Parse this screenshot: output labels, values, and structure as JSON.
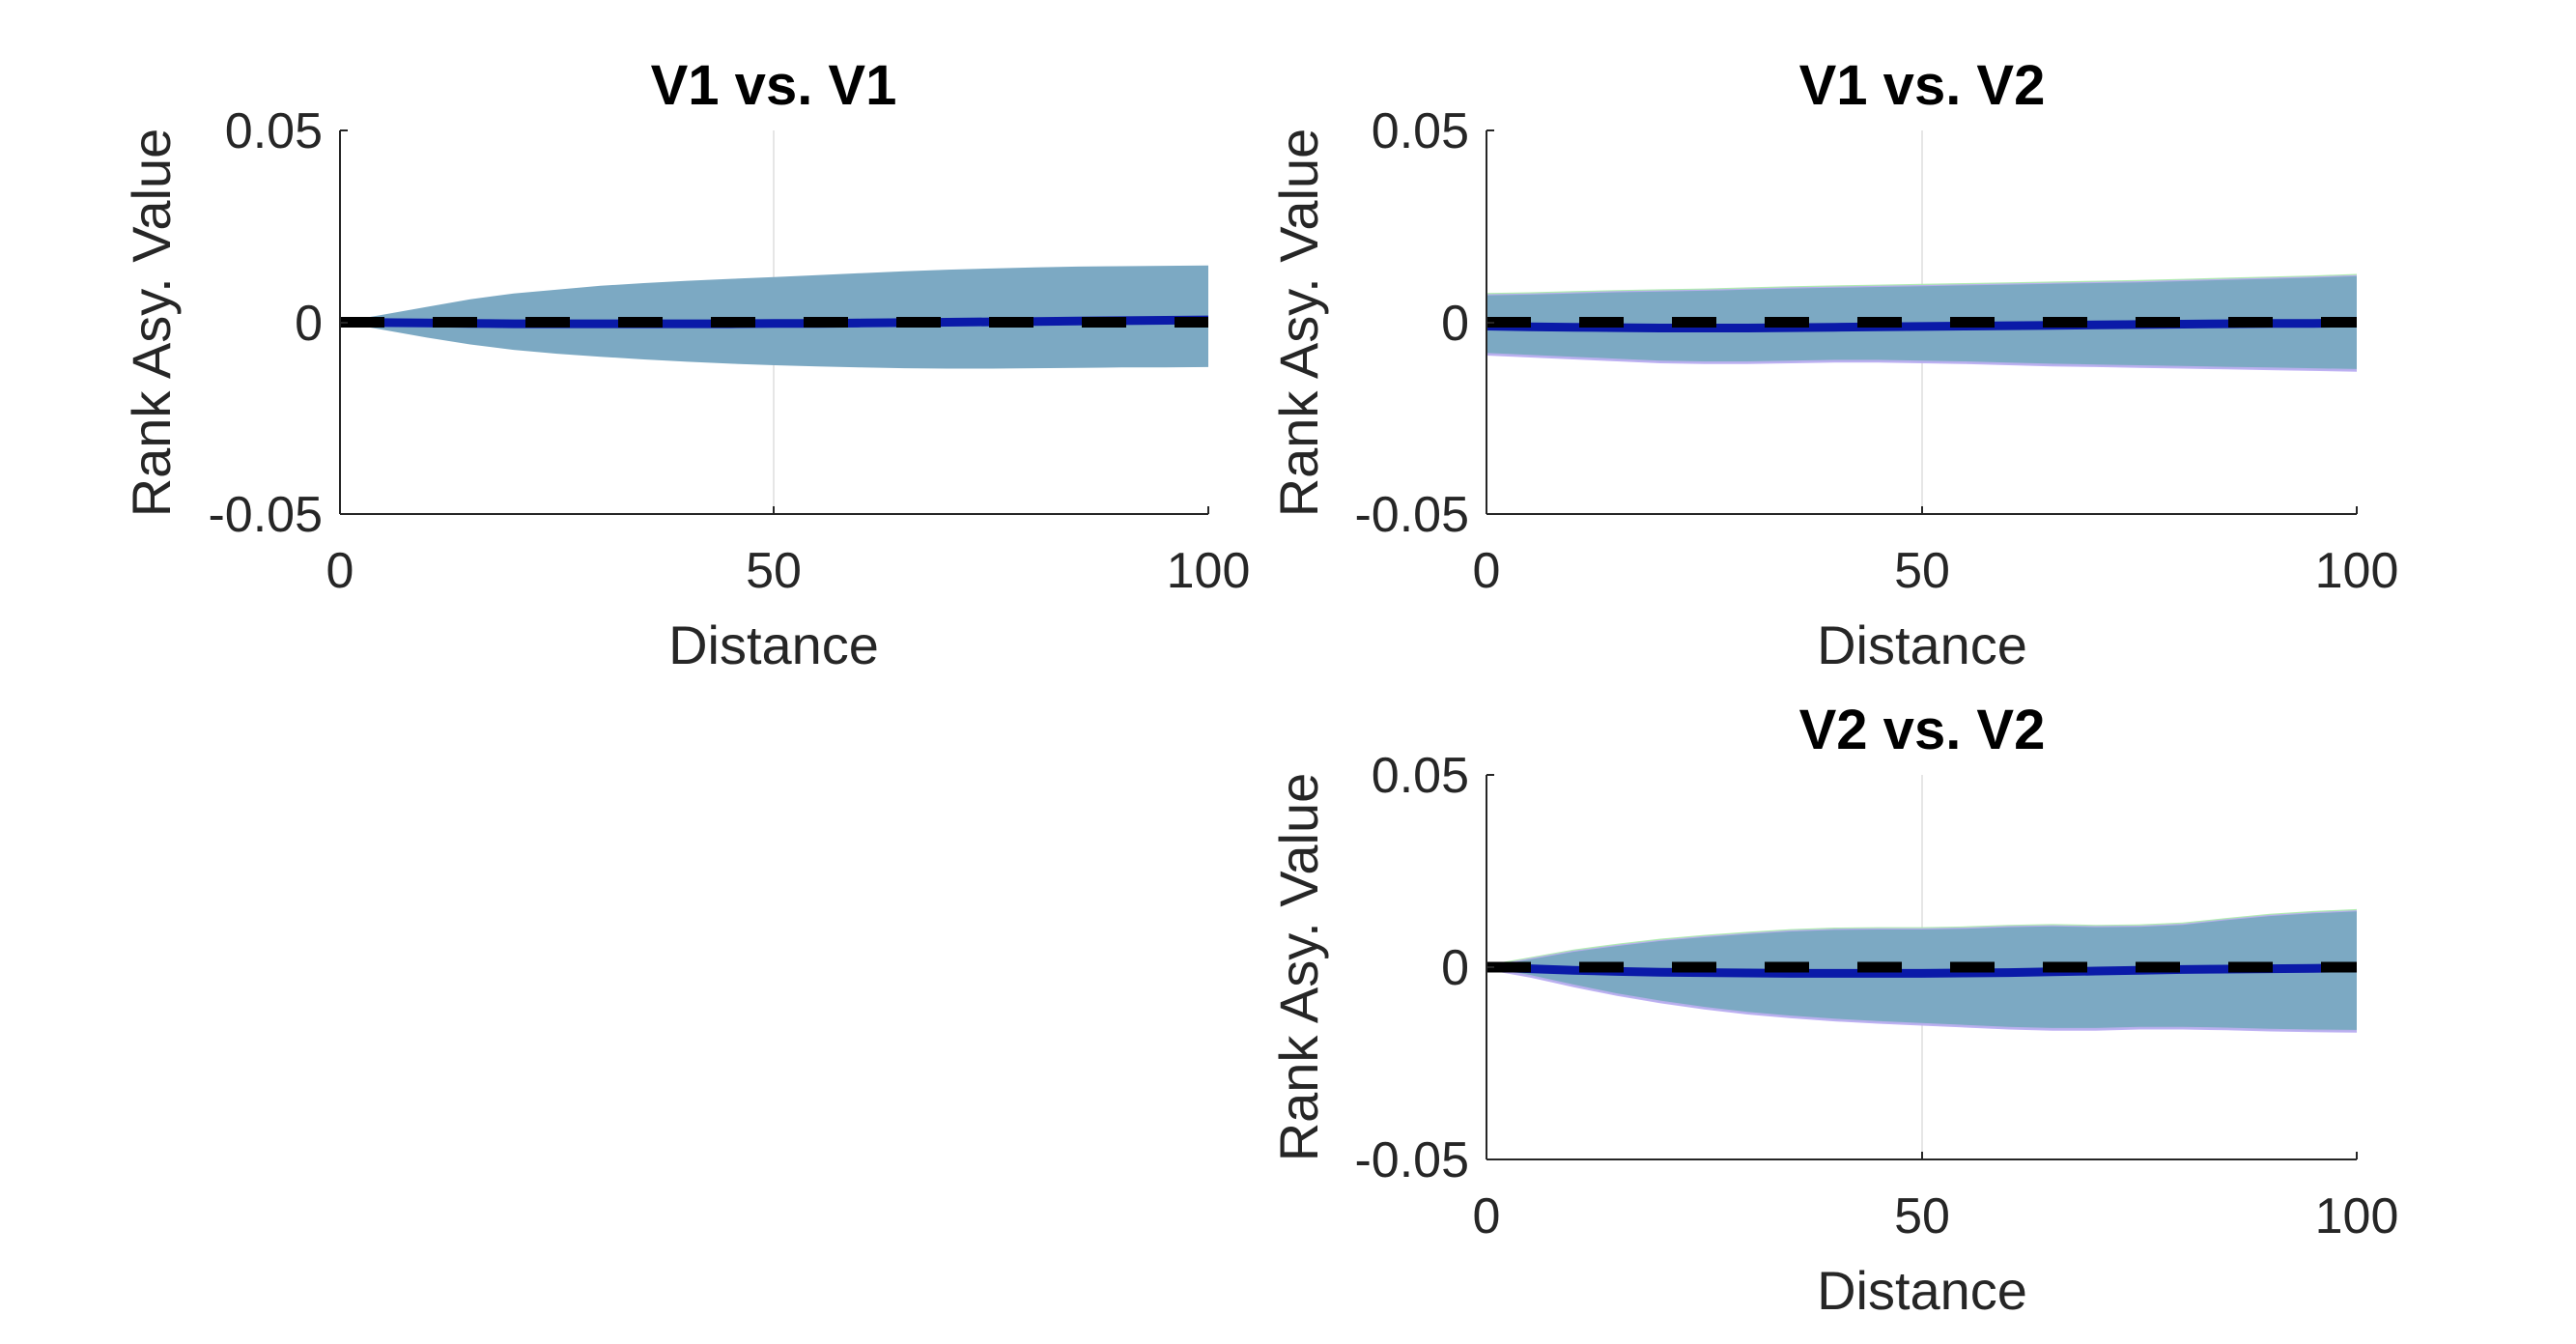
{
  "colors": {
    "band_overlap": "#7ca9c3",
    "band_green": "#a6eaa6",
    "band_purple": "#b7a8f2",
    "mean_line": "#0a1aa8",
    "reference_line": "#000000",
    "axes": "#262626",
    "grid": "#e6e6e6"
  },
  "chart_data": [
    {
      "id": "v1v1",
      "type": "area",
      "title": "V1 vs. V1",
      "xlabel": "Distance",
      "ylabel": "Rank Asy. Value",
      "xlim": [
        0,
        100
      ],
      "ylim": [
        -0.05,
        0.05
      ],
      "xticks": [
        "0",
        "50",
        "100"
      ],
      "yticks": [
        "0.05",
        "0",
        "-0.05"
      ],
      "grid": "x-major-at-50",
      "x": [
        0,
        5,
        10,
        15,
        20,
        25,
        30,
        35,
        40,
        45,
        50,
        55,
        60,
        65,
        70,
        75,
        80,
        85,
        90,
        95,
        100
      ],
      "series": [
        {
          "upper": [
            0,
            0.002,
            0.004,
            0.006,
            0.0075,
            0.0085,
            0.0095,
            0.0102,
            0.0108,
            0.0113,
            0.0118,
            0.0123,
            0.0128,
            0.0133,
            0.0137,
            0.014,
            0.0143,
            0.0145,
            0.0146,
            0.0147,
            0.0148
          ],
          "lower": [
            0,
            -0.002,
            -0.004,
            -0.0058,
            -0.0072,
            -0.0082,
            -0.009,
            -0.0097,
            -0.0103,
            -0.0108,
            -0.0112,
            -0.0115,
            -0.0118,
            -0.012,
            -0.0121,
            -0.0121,
            -0.012,
            -0.0119,
            -0.0118,
            -0.0118,
            -0.0117
          ],
          "mean": [
            0,
            -0.0001,
            -0.0002,
            -0.0003,
            -0.0004,
            -0.0004,
            -0.0004,
            -0.0004,
            -0.0004,
            -0.0004,
            -0.0003,
            -0.0003,
            -0.0002,
            -0.0001,
            0,
            0.0001,
            0.0002,
            0.0003,
            0.0004,
            0.0005,
            0.0006
          ]
        }
      ],
      "reference_y": 0
    },
    {
      "id": "v1v2",
      "type": "area",
      "title": "V1 vs. V2",
      "xlabel": "Distance",
      "ylabel": "Rank Asy. Value",
      "xlim": [
        0,
        100
      ],
      "ylim": [
        -0.05,
        0.05
      ],
      "xticks": [
        "0",
        "50",
        "100"
      ],
      "yticks": [
        "0.05",
        "0",
        "-0.05"
      ],
      "grid": "x-major-at-50",
      "x": [
        0,
        5,
        10,
        15,
        20,
        25,
        30,
        35,
        40,
        45,
        50,
        55,
        60,
        65,
        70,
        75,
        80,
        85,
        90,
        95,
        100
      ],
      "series": [
        {
          "upper": [
            0.007,
            0.0072,
            0.0075,
            0.0078,
            0.008,
            0.0082,
            0.0085,
            0.0088,
            0.009,
            0.0092,
            0.0094,
            0.0096,
            0.0098,
            0.01,
            0.0102,
            0.0104,
            0.0107,
            0.011,
            0.0113,
            0.0116,
            0.012
          ],
          "lower": [
            -0.008,
            -0.0085,
            -0.009,
            -0.0095,
            -0.01,
            -0.0102,
            -0.0102,
            -0.01,
            -0.0098,
            -0.0098,
            -0.01,
            -0.0102,
            -0.0105,
            -0.0108,
            -0.011,
            -0.0112,
            -0.0114,
            -0.0116,
            -0.0118,
            -0.012,
            -0.0122
          ],
          "mean": [
            -0.001,
            -0.0012,
            -0.0013,
            -0.0014,
            -0.0015,
            -0.0015,
            -0.0015,
            -0.0014,
            -0.0013,
            -0.0012,
            -0.0011,
            -0.001,
            -0.0009,
            -0.0008,
            -0.0007,
            -0.0006,
            -0.0005,
            -0.0004,
            -0.0003,
            -0.0003,
            -0.0002
          ]
        }
      ],
      "reference_y": 0
    },
    {
      "id": "v2v2",
      "type": "area",
      "title": "V2 vs. V2",
      "xlabel": "Distance",
      "ylabel": "Rank Asy. Value",
      "xlim": [
        0,
        100
      ],
      "ylim": [
        -0.05,
        0.05
      ],
      "xticks": [
        "0",
        "50",
        "100"
      ],
      "yticks": [
        "0.05",
        "0",
        "-0.05"
      ],
      "grid": "x-major-at-50",
      "x": [
        0,
        5,
        10,
        15,
        20,
        25,
        30,
        35,
        40,
        45,
        50,
        55,
        60,
        65,
        70,
        75,
        80,
        85,
        90,
        95,
        100
      ],
      "series": [
        {
          "upper": [
            0,
            0.002,
            0.004,
            0.0055,
            0.0068,
            0.0078,
            0.0086,
            0.0093,
            0.0097,
            0.0098,
            0.0098,
            0.01,
            0.0104,
            0.0106,
            0.0104,
            0.0105,
            0.011,
            0.0122,
            0.0133,
            0.014,
            0.0145
          ],
          "lower": [
            0,
            -0.002,
            -0.0045,
            -0.0068,
            -0.0087,
            -0.0103,
            -0.0116,
            -0.0126,
            -0.0134,
            -0.014,
            -0.0145,
            -0.015,
            -0.0155,
            -0.0158,
            -0.0158,
            -0.0155,
            -0.0155,
            -0.0157,
            -0.016,
            -0.0162,
            -0.0163
          ],
          "mean": [
            0,
            -0.0004,
            -0.0008,
            -0.0011,
            -0.0013,
            -0.0014,
            -0.0015,
            -0.0016,
            -0.0016,
            -0.0016,
            -0.0016,
            -0.0015,
            -0.0014,
            -0.0012,
            -0.001,
            -0.0008,
            -0.0006,
            -0.0005,
            -0.0004,
            -0.0003,
            -0.0002
          ]
        }
      ],
      "reference_y": 0
    }
  ]
}
